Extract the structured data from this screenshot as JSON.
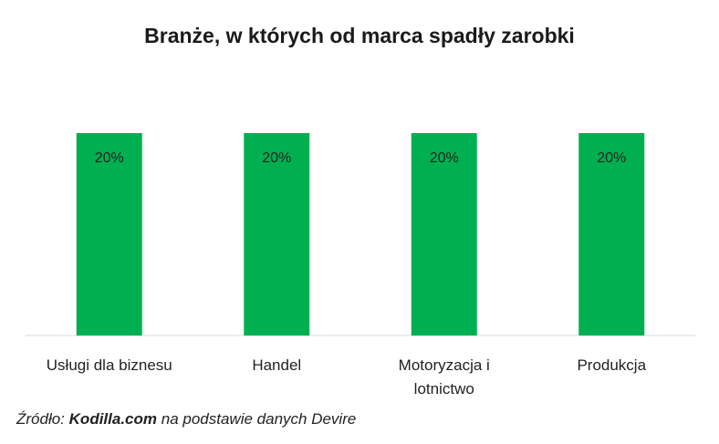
{
  "chart_data": {
    "type": "bar",
    "title": "Branże, w których od marca spadły zarobki",
    "categories": [
      "Usługi dla biznesu",
      "Handel",
      "Motoryzacja i lotnictwo",
      "Produkcja"
    ],
    "values": [
      20,
      20,
      20,
      20
    ],
    "value_labels": [
      "20%",
      "20%",
      "20%",
      "20%"
    ],
    "color": "#00b050",
    "source": {
      "prefix": "Źródło:",
      "emphasis": "Kodilla.com",
      "suffix": "na podstawie danych Devire"
    }
  }
}
